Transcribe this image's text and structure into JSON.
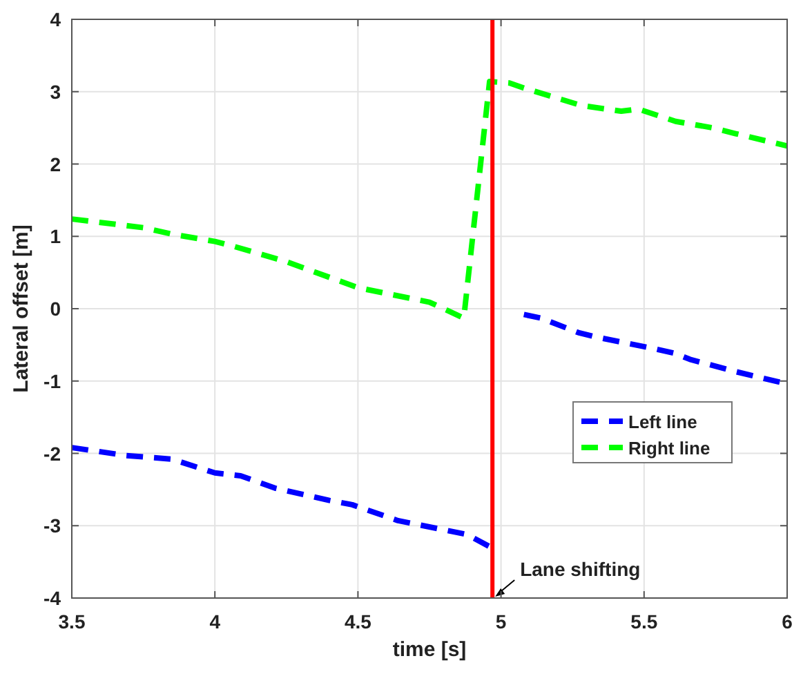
{
  "chart_data": {
    "type": "line",
    "xlabel": "time [s]",
    "ylabel": "Lateral offset [m]",
    "xlim": [
      3.5,
      6
    ],
    "xticks": [
      3.5,
      4,
      4.5,
      5,
      5.5,
      6
    ],
    "ylim": [
      -4,
      4
    ],
    "yticks": [
      -4,
      -3,
      -2,
      -1,
      0,
      1,
      2,
      3,
      4
    ],
    "grid": true,
    "legend": "bottom right",
    "line_style": "dashed",
    "marker": "none",
    "series": [
      {
        "name": "Left line",
        "color": "#0000ff",
        "x": [
          3.5,
          3.69,
          3.85,
          4.0,
          4.09,
          4.21,
          4.4,
          4.48,
          4.64,
          4.88,
          4.97,
          5.0,
          5.08,
          5.14,
          5.27,
          5.33,
          5.52,
          5.61,
          5.66,
          5.82,
          6.0
        ],
        "values": [
          -1.92,
          -2.03,
          -2.08,
          -2.27,
          -2.31,
          -2.48,
          -2.65,
          -2.71,
          -2.93,
          -3.12,
          -3.31,
          null,
          -0.08,
          -0.13,
          -0.33,
          -0.39,
          -0.54,
          -0.62,
          -0.7,
          -0.87,
          -1.04
        ]
      },
      {
        "name": "Right line",
        "color": "#00ff00",
        "x": [
          3.5,
          3.75,
          3.85,
          4.0,
          4.05,
          4.25,
          4.5,
          4.75,
          4.87,
          4.96,
          5.03,
          5.08,
          5.28,
          5.42,
          5.48,
          5.61,
          5.74,
          5.82,
          6.0
        ],
        "values": [
          1.24,
          1.12,
          1.03,
          0.93,
          0.88,
          0.65,
          0.29,
          0.09,
          -0.13,
          3.14,
          3.12,
          3.05,
          2.81,
          2.73,
          2.76,
          2.59,
          2.5,
          2.42,
          2.25
        ]
      }
    ],
    "ref_lines": [
      {
        "axis": "x",
        "value": 4.97,
        "label": "Lane shifting",
        "color": "#ff0000"
      }
    ]
  }
}
